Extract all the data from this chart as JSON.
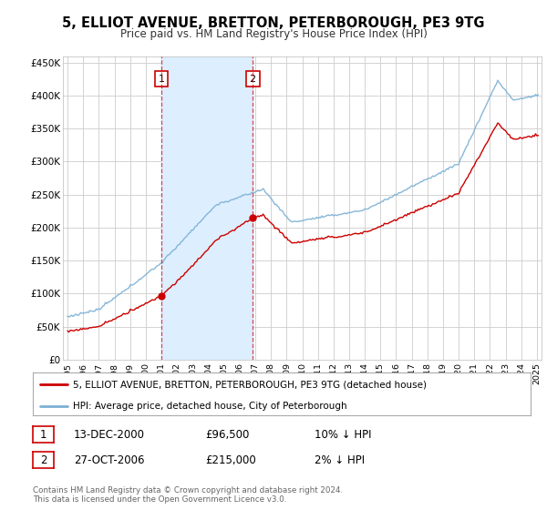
{
  "title": "5, ELLIOT AVENUE, BRETTON, PETERBOROUGH, PE3 9TG",
  "subtitle": "Price paid vs. HM Land Registry's House Price Index (HPI)",
  "legend_line1": "5, ELLIOT AVENUE, BRETTON, PETERBOROUGH, PE3 9TG (detached house)",
  "legend_line2": "HPI: Average price, detached house, City of Peterborough",
  "annotation1_date": "13-DEC-2000",
  "annotation1_price": "£96,500",
  "annotation1_hpi": "10% ↓ HPI",
  "annotation2_date": "27-OCT-2006",
  "annotation2_price": "£215,000",
  "annotation2_hpi": "2% ↓ HPI",
  "footer": "Contains HM Land Registry data © Crown copyright and database right 2024.\nThis data is licensed under the Open Government Licence v3.0.",
  "sale1_year": 2001.0,
  "sale1_price": 96500,
  "sale2_year": 2006.83,
  "sale2_price": 215000,
  "ylim_min": 0,
  "ylim_max": 460000,
  "xlim_min": 1994.7,
  "xlim_max": 2025.3,
  "hpi_color": "#7ab0d4",
  "price_color": "#cc0000",
  "shade_color": "#ddeeff",
  "background_color": "#ffffff",
  "plot_bg_color": "#ffffff",
  "grid_color": "#cccccc",
  "title_fontsize": 10.5,
  "subtitle_fontsize": 8.5,
  "ytick_labels": [
    "£0",
    "£50K",
    "£100K",
    "£150K",
    "£200K",
    "£250K",
    "£300K",
    "£350K",
    "£400K",
    "£450K"
  ],
  "ytick_values": [
    0,
    50000,
    100000,
    150000,
    200000,
    250000,
    300000,
    350000,
    400000,
    450000
  ]
}
